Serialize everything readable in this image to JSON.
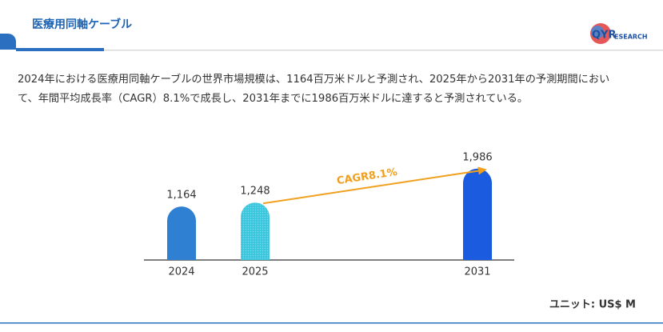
{
  "header": {
    "title": "医療用同軸ケーブル"
  },
  "logo": {
    "mark": "QYR",
    "text": "ESEARCH"
  },
  "description": [
    "2024年における医療用同軸ケーブルの世界市場規模は、1164百万米ドルと予測され、2025年から2031年の予測期間におい",
    "て、年間平均成長率（CAGR）8.1%で成長し、2031年までに1986百万米ドルに達すると予測されている。"
  ],
  "chart_data": {
    "type": "bar",
    "categories": [
      "2024",
      "2025",
      "2031"
    ],
    "values": [
      1164,
      1248,
      1986
    ],
    "value_labels": [
      "1,164",
      "1,248",
      "1,986"
    ],
    "colors": [
      "#2f80d2",
      "#3cc6de",
      "#1a5be0"
    ],
    "annotation": "CAGR8.1%",
    "annotation_color": "#f0a01e",
    "unit": "ユニット: US$ M"
  }
}
